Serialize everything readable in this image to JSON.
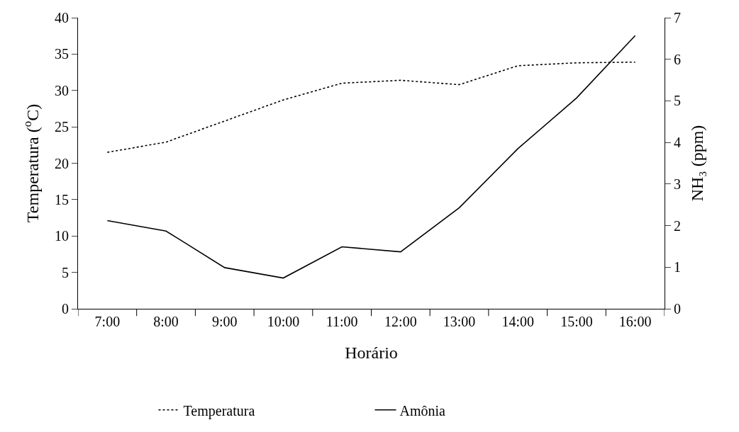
{
  "chart_data": {
    "type": "line",
    "xlabel": "Horário",
    "ylabel": "Temperatura ($^{o}$C)",
    "y2label": "NH₃ (ppm)",
    "categories": [
      "7:00",
      "8:00",
      "9:00",
      "10:00",
      "11:00",
      "12:00",
      "13:00",
      "14:00",
      "15:00",
      "16:00"
    ],
    "series": [
      {
        "name": "Temperatura",
        "color": "#000000",
        "line_style": "dotted",
        "values": [
          21.5,
          22.9,
          25.8,
          28.7,
          31.0,
          31.4,
          30.8,
          33.4,
          33.8,
          33.9
        ]
      },
      {
        "name": "Amônia",
        "color": "#000000",
        "line_style": "solid",
        "axis": "y2",
        "values": [
          2.12,
          1.87,
          0.99,
          0.74,
          1.49,
          1.37,
          2.43,
          3.85,
          5.07,
          6.57
        ]
      }
    ],
    "ylim": [
      0,
      40
    ],
    "yticks": [
      0,
      5,
      10,
      15,
      20,
      25,
      30,
      35,
      40
    ],
    "y2lim": [
      0,
      7
    ],
    "y2ticks": [
      0,
      1,
      2,
      3,
      4,
      5,
      6,
      7
    ],
    "legend": "bottom",
    "marker": "none"
  }
}
